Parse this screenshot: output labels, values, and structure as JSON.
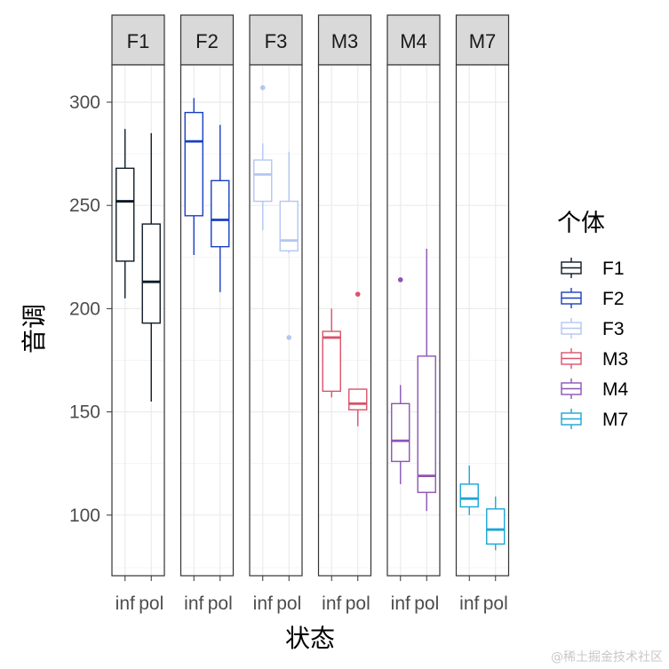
{
  "chart_data": {
    "type": "boxplot",
    "facet_by": "个体",
    "xlabel": "状态",
    "ylabel": "音调",
    "ylim": [
      72,
      322
    ],
    "yticks": [
      100,
      150,
      200,
      250,
      300
    ],
    "categories": [
      "inf",
      "pol"
    ],
    "legend": {
      "title": "个体",
      "position": "right"
    },
    "grid": true,
    "panels": [
      {
        "name": "F1",
        "color": "#0d1a26",
        "boxes": [
          {
            "x": "inf",
            "min": 205,
            "q1": 223,
            "median": 252,
            "q3": 268,
            "max": 287,
            "outliers": []
          },
          {
            "x": "pol",
            "min": 155,
            "q1": 193,
            "median": 213,
            "q3": 241,
            "max": 285,
            "outliers": []
          }
        ]
      },
      {
        "name": "F2",
        "color": "#1a3fbf",
        "boxes": [
          {
            "x": "inf",
            "min": 226,
            "q1": 245,
            "median": 281,
            "q3": 295,
            "max": 302,
            "outliers": []
          },
          {
            "x": "pol",
            "min": 208,
            "q1": 230,
            "median": 243,
            "q3": 262,
            "max": 289,
            "outliers": []
          }
        ]
      },
      {
        "name": "F3",
        "color": "#b4c6f2",
        "boxes": [
          {
            "x": "inf",
            "min": 238,
            "q1": 252,
            "median": 265,
            "q3": 272,
            "max": 280,
            "outliers": [
              307
            ]
          },
          {
            "x": "pol",
            "min": 227,
            "q1": 228,
            "median": 233,
            "q3": 252,
            "max": 276,
            "outliers": [
              186
            ]
          }
        ]
      },
      {
        "name": "M3",
        "color": "#d9536b",
        "boxes": [
          {
            "x": "inf",
            "min": 157,
            "q1": 160,
            "median": 186,
            "q3": 189,
            "max": 200,
            "outliers": []
          },
          {
            "x": "pol",
            "min": 143,
            "q1": 151,
            "median": 154,
            "q3": 161,
            "max": 161,
            "outliers": [
              207
            ]
          }
        ]
      },
      {
        "name": "M4",
        "color": "#8c54b5",
        "boxes": [
          {
            "x": "inf",
            "min": 115,
            "q1": 126,
            "median": 136,
            "q3": 154,
            "max": 163,
            "outliers": [
              214
            ]
          },
          {
            "x": "pol",
            "min": 102,
            "q1": 111,
            "median": 119,
            "q3": 177,
            "max": 229,
            "outliers": []
          }
        ]
      },
      {
        "name": "M7",
        "color": "#1aa6d6",
        "boxes": [
          {
            "x": "inf",
            "min": 100,
            "q1": 104,
            "median": 108,
            "q3": 115,
            "max": 124,
            "outliers": []
          },
          {
            "x": "pol",
            "min": 83,
            "q1": 86,
            "median": 93,
            "q3": 103,
            "max": 109,
            "outliers": []
          }
        ]
      }
    ]
  },
  "watermark": "@稀土掘金技术社区"
}
